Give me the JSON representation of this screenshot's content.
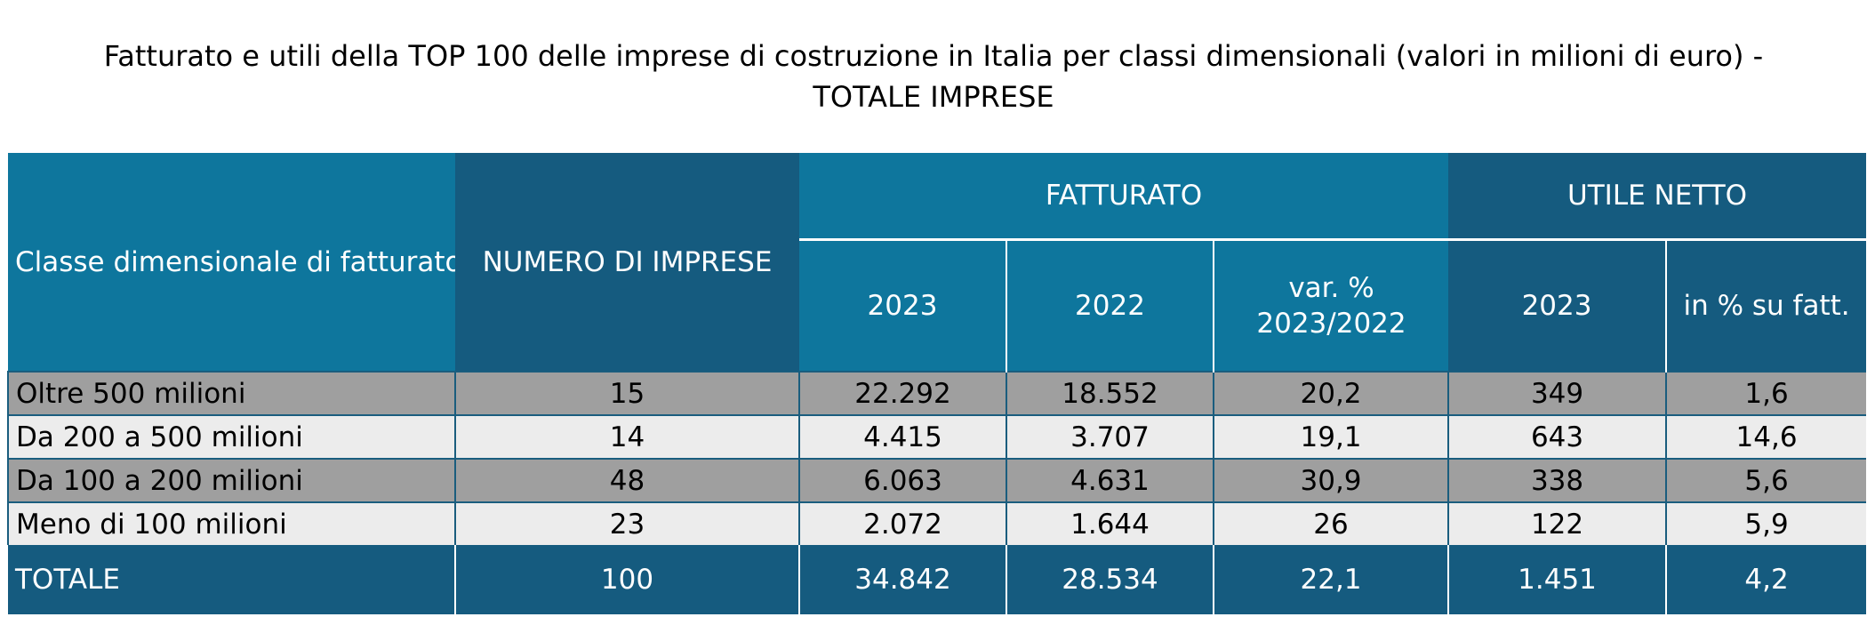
{
  "title_line1": "Fatturato e utili della TOP 100 delle imprese di costruzione in Italia per classi dimensionali (valori in milioni di euro) -",
  "title_line2": "TOTALE IMPRESE",
  "colors": {
    "header_light": "#0e769d",
    "header_dark": "#155b7f",
    "row_gray": "#9f9f9f",
    "row_light": "#ececec",
    "total_bg": "#155b7f"
  },
  "chart_data": {
    "type": "table",
    "title": "Fatturato e utili della TOP 100 delle imprese di costruzione in Italia per classi dimensionali (valori in milioni di euro) - TOTALE IMPRESE",
    "headers": {
      "classe": "Classe dimensionale di fatturato",
      "numero": "NUMERO DI IMPRESE",
      "fatturato": "FATTURATO",
      "utile": "UTILE NETTO",
      "fatt_2023": "2023",
      "fatt_2022": "2022",
      "var_line1": "var. %",
      "var_line2": "2023/2022",
      "utile_2023": "2023",
      "utile_pct": "in % su fatt."
    },
    "rows": [
      {
        "classe": "Oltre 500 milioni",
        "numero": "15",
        "fatt_2023": "22.292",
        "fatt_2022": "18.552",
        "var": "20,2",
        "utile_2023": "349",
        "utile_pct": "1,6"
      },
      {
        "classe": "Da 200 a 500 milioni",
        "numero": "14",
        "fatt_2023": "4.415",
        "fatt_2022": "3.707",
        "var": "19,1",
        "utile_2023": "643",
        "utile_pct": "14,6"
      },
      {
        "classe": "Da 100 a 200 milioni",
        "numero": "48",
        "fatt_2023": "6.063",
        "fatt_2022": "4.631",
        "var": "30,9",
        "utile_2023": "338",
        "utile_pct": "5,6"
      },
      {
        "classe": "Meno di 100 milioni",
        "numero": "23",
        "fatt_2023": "2.072",
        "fatt_2022": "1.644",
        "var": "26",
        "utile_2023": "122",
        "utile_pct": "5,9"
      }
    ],
    "total": {
      "classe": "TOTALE",
      "numero": "100",
      "fatt_2023": "34.842",
      "fatt_2022": "28.534",
      "var": "22,1",
      "utile_2023": "1.451",
      "utile_pct": "4,2"
    }
  }
}
